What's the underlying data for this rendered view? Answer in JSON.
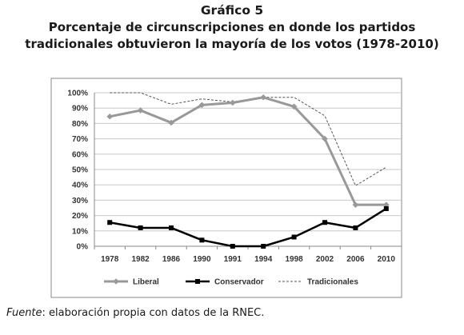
{
  "figure": {
    "label": "Gráfico 5",
    "title_line1": "Porcentaje de circunscripciones en donde los partidos",
    "title_line2": "tradicionales obtuvieron la mayoría de los votos (1978-2010)"
  },
  "source": {
    "label": "Fuente",
    "text": ": elaboración propia con datos de la RNEC."
  },
  "chart_data": {
    "type": "line",
    "categories": [
      "1978",
      "1982",
      "1986",
      "1990",
      "1991",
      "1994",
      "1998",
      "2002",
      "2006",
      "2010"
    ],
    "y_tick_labels": [
      "0%",
      "10%",
      "20%",
      "30%",
      "40%",
      "50%",
      "60%",
      "70%",
      "80%",
      "90%",
      "100%"
    ],
    "ylim": [
      0,
      100
    ],
    "grid": true,
    "legend_position": "bottom",
    "series": [
      {
        "name": "Liberal",
        "color": "#999999",
        "style": "solid-diamond",
        "values": [
          84.5,
          88.5,
          80.5,
          92,
          93.5,
          97,
          91,
          70,
          27,
          27
        ]
      },
      {
        "name": "Conservador",
        "color": "#000000",
        "style": "solid-square",
        "values": [
          15.5,
          12,
          12,
          4,
          0,
          0,
          6,
          15.5,
          12,
          24.5
        ]
      },
      {
        "name": "Tradicionales",
        "color": "#555555",
        "style": "dashed",
        "values": [
          100,
          100,
          92.5,
          96,
          94,
          97,
          97,
          85,
          39.5,
          51.5
        ]
      }
    ]
  }
}
